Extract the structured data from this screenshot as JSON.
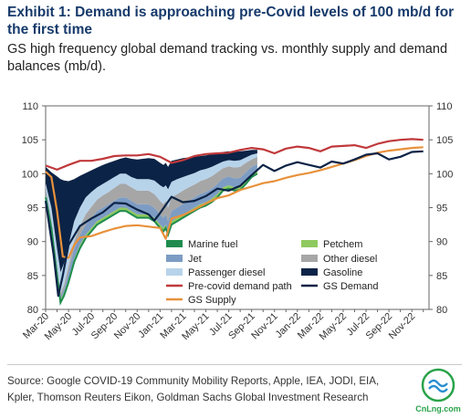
{
  "title": "Exhibit 1: Demand is approaching pre-Covid levels of 100 mb/d for the first time",
  "subtitle": "GS high frequency global demand tracking vs. monthly supply and demand balances (mb/d).",
  "source": "Source: Google COVID-19 Community Mobility Reports, Apple, IEA, JODI, EIA, Kpler, Thomson Reuters Eikon, Goldman Sachs Global Investment Research",
  "logo_text": "CnLng.com",
  "colors": {
    "marine": "#1f8c4e",
    "jet": "#7d9cc4",
    "passenger": "#b7d3ea",
    "petchem": "#8fc95f",
    "other_diesel": "#a6a6a6",
    "gasoline": "#0b2346",
    "precovid": "#c0393b",
    "gs_demand": "#0b2346",
    "gs_supply": "#e8913b"
  },
  "chart_data": {
    "type": "area",
    "ylim": [
      80,
      110
    ],
    "yticks": [
      80,
      85,
      90,
      95,
      100,
      105,
      110
    ],
    "x_tick_labels": [
      "Mar-20",
      "May-20",
      "Jul-20",
      "Sep-20",
      "Nov-20",
      "Jan-21",
      "Mar-21",
      "May-21",
      "Jul-21",
      "Sep-21",
      "Nov-21",
      "Jan-22",
      "Mar-22",
      "May-22",
      "Jul-22",
      "Sep-22",
      "Nov-22"
    ],
    "xlim_months": [
      0,
      33.5
    ],
    "legend": [
      {
        "key": "marine",
        "label": "Marine fuel",
        "kind": "area"
      },
      {
        "key": "petchem",
        "label": "Petchem",
        "kind": "area"
      },
      {
        "key": "jet",
        "label": "Jet",
        "kind": "area"
      },
      {
        "key": "other_diesel",
        "label": "Other diesel",
        "kind": "area"
      },
      {
        "key": "passenger",
        "label": "Passenger diesel",
        "kind": "area"
      },
      {
        "key": "gasoline",
        "label": "Gasoline",
        "kind": "area"
      },
      {
        "key": "precovid",
        "label": "Pre-covid demand path",
        "kind": "line"
      },
      {
        "key": "gs_demand",
        "label": "GS Demand",
        "kind": "line"
      },
      {
        "key": "gs_supply",
        "label": "GS Supply",
        "kind": "line"
      }
    ],
    "area_x": [
      0,
      0.5,
      1.0,
      1.3,
      1.6,
      2.0,
      2.5,
      3,
      3.5,
      4,
      4.5,
      5,
      5.5,
      6,
      6.5,
      7,
      7.5,
      8,
      8.5,
      9,
      9.5,
      10,
      10.3,
      10.5,
      10.7,
      11,
      11.5,
      12,
      12.5,
      13,
      13.5,
      14,
      14.5,
      15,
      15.5,
      16,
      16.5,
      17,
      17.5,
      18,
      18.5
    ],
    "area_bounds": [
      [
        96.5,
        92.0,
        85.0,
        81.0,
        82.0,
        84.0,
        87.0,
        89.0,
        90.5,
        91.5,
        92.5,
        93.0,
        93.5,
        94.0,
        94.5,
        94.5,
        94.0,
        93.5,
        93.5,
        93.5,
        93.0,
        92.0,
        91.5,
        92.0,
        91.0,
        92.5,
        93.0,
        93.5,
        94.0,
        94.5,
        95.0,
        95.3,
        95.8,
        96.5,
        97.5,
        97.8,
        97.5,
        97.6,
        98.5,
        99.5,
        100.0
      ],
      [
        96.5,
        92.0,
        85.0,
        81.0,
        82.0,
        84.0,
        87.0,
        89.0,
        90.5,
        91.5,
        92.5,
        93.0,
        93.5,
        94.0,
        94.5,
        94.5,
        94.0,
        93.5,
        93.5,
        93.5,
        93.0,
        92.0,
        91.5,
        92.0,
        91.0,
        92.5,
        93.0,
        93.5,
        94.0,
        94.5,
        95.0,
        95.3,
        95.8,
        96.5,
        97.5,
        97.8,
        97.5,
        97.6,
        98.5,
        99.5,
        100.0
      ],
      [
        97.0,
        92.5,
        85.5,
        81.5,
        82.5,
        84.5,
        87.5,
        89.5,
        91.0,
        92.0,
        93.0,
        93.5,
        94.0,
        94.5,
        95.0,
        95.0,
        94.5,
        94.0,
        94.0,
        94.0,
        93.5,
        92.5,
        92.0,
        92.5,
        91.5,
        93.0,
        93.5,
        94.0,
        94.5,
        95.0,
        95.5,
        95.8,
        96.3,
        97.0,
        98.0,
        98.3,
        98.0,
        98.1,
        99.0,
        100.0,
        100.5
      ],
      [
        97.5,
        93.0,
        86.0,
        82.0,
        83.0,
        85.5,
        89.0,
        91.0,
        92.5,
        93.5,
        94.5,
        95.0,
        95.5,
        96.0,
        96.5,
        96.5,
        96.0,
        95.5,
        95.5,
        95.5,
        95.0,
        94.0,
        93.5,
        94.0,
        93.0,
        94.5,
        95.0,
        95.5,
        96.0,
        96.5,
        97.0,
        97.3,
        97.8,
        98.5,
        99.3,
        99.6,
        99.3,
        99.4,
        100.2,
        101.0,
        101.4
      ],
      [
        97.9,
        93.3,
        86.4,
        82.5,
        83.6,
        86.4,
        90.1,
        92.3,
        94.0,
        95.1,
        96.2,
        96.8,
        97.3,
        97.9,
        98.5,
        98.5,
        98.0,
        97.5,
        97.5,
        97.5,
        97.0,
        96.0,
        95.5,
        96.0,
        95.0,
        96.5,
        97.0,
        97.5,
        98.0,
        98.4,
        98.9,
        99.2,
        99.6,
        100.2,
        100.8,
        101.1,
        100.9,
        101.0,
        101.6,
        102.1,
        102.5
      ],
      [
        98.6,
        95.0,
        89.0,
        85.5,
        86.8,
        89.5,
        93.0,
        95.0,
        96.5,
        97.3,
        98.0,
        98.5,
        99.0,
        99.5,
        100.0,
        100.0,
        99.5,
        99.2,
        99.2,
        99.2,
        99.0,
        98.3,
        98.0,
        98.3,
        97.7,
        98.8,
        99.2,
        99.5,
        99.8,
        100.1,
        100.5,
        100.7,
        101.0,
        101.4,
        101.8,
        102.0,
        101.9,
        102.0,
        102.4,
        102.8,
        103.0
      ],
      [
        101.0,
        100.2,
        99.6,
        99.2,
        99.0,
        98.9,
        99.2,
        99.7,
        100.1,
        100.5,
        100.9,
        101.3,
        101.6,
        101.9,
        102.2,
        102.4,
        102.2,
        102.1,
        102.2,
        102.3,
        102.2,
        101.6,
        101.3,
        101.6,
        101.0,
        101.9,
        102.1,
        102.3,
        102.4,
        102.5,
        102.6,
        102.7,
        102.9,
        103.0,
        103.2,
        103.3,
        103.2,
        103.3,
        103.4,
        103.5,
        103.5
      ]
    ],
    "precovid": {
      "x": [
        0,
        1,
        2,
        3,
        4,
        5,
        6,
        7,
        8,
        9,
        10,
        11,
        12,
        13,
        14,
        15,
        16,
        17,
        18,
        19,
        20,
        21,
        22,
        23,
        24,
        25,
        26,
        27,
        28,
        29,
        30,
        31,
        32,
        33
      ],
      "y": [
        101.2,
        100.6,
        101.3,
        101.9,
        101.9,
        102.2,
        102.6,
        102.7,
        102.7,
        102.9,
        102.5,
        101.6,
        102.0,
        102.6,
        102.9,
        103.0,
        103.1,
        103.5,
        103.8,
        103.6,
        103.0,
        103.7,
        104.0,
        103.8,
        103.3,
        104.0,
        104.1,
        104.2,
        103.8,
        104.4,
        104.8,
        105.0,
        105.1,
        105.0
      ]
    },
    "gs_demand": {
      "x": [
        0,
        0.7,
        1.1,
        1.5,
        2,
        3,
        4,
        5,
        6,
        7,
        8,
        9,
        9.5,
        10,
        11,
        12,
        13,
        14,
        15,
        16,
        17,
        18,
        19,
        20,
        21,
        22,
        23,
        24,
        25,
        26,
        27,
        28,
        29,
        30,
        31,
        32,
        33
      ],
      "y": [
        96.0,
        88.0,
        82.0,
        85.0,
        89.5,
        92.3,
        93.4,
        94.3,
        95.7,
        95.6,
        94.7,
        94.0,
        93.1,
        94.2,
        96.6,
        95.8,
        96.0,
        96.7,
        97.8,
        97.5,
        98.2,
        99.8,
        101.3,
        100.4,
        101.2,
        101.7,
        101.3,
        100.9,
        101.8,
        101.5,
        102.1,
        102.8,
        103.0,
        102.1,
        102.5,
        103.2,
        103.3
      ]
    },
    "gs_supply": {
      "x": [
        0,
        0.5,
        1.0,
        1.5,
        2,
        2.5,
        3,
        4,
        5,
        6,
        7,
        8,
        9,
        10,
        10.5,
        11,
        12,
        13,
        14,
        15,
        16,
        17,
        18,
        19,
        20,
        21,
        22,
        23,
        24,
        25,
        26,
        27,
        28,
        29,
        30,
        31,
        32,
        33
      ],
      "y": [
        100.3,
        99.5,
        94.5,
        87.8,
        87.6,
        89.5,
        90.6,
        90.8,
        91.4,
        91.9,
        92.3,
        92.4,
        92.2,
        92.0,
        90.4,
        93.4,
        93.9,
        94.7,
        95.6,
        96.4,
        96.8,
        97.6,
        98.1,
        98.6,
        98.9,
        99.4,
        99.8,
        100.1,
        100.5,
        101.0,
        101.5,
        102.0,
        102.6,
        103.1,
        103.4,
        103.6,
        103.8,
        103.9
      ]
    }
  }
}
